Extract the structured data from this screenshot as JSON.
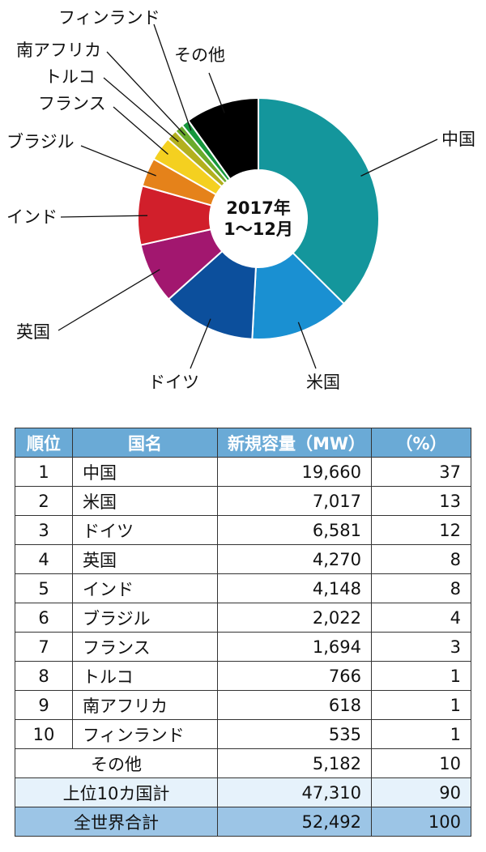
{
  "chart_data": [
    {
      "type": "pie",
      "donut": true,
      "center_label": [
        "2017年",
        "1～12月"
      ],
      "categories": [
        "中国",
        "米国",
        "ドイツ",
        "英国",
        "インド",
        "ブラジル",
        "フランス",
        "トルコ",
        "南アフリカ",
        "フィンランド",
        "その他"
      ],
      "values": [
        19660,
        7017,
        6581,
        4270,
        4148,
        2022,
        1694,
        766,
        618,
        535,
        5182
      ],
      "colors": [
        "#14969c",
        "#1a90d2",
        "#0c4f9c",
        "#a2176f",
        "#d11f2b",
        "#e5821a",
        "#f4d020",
        "#b3b01e",
        "#6bab2c",
        "#16973c",
        "#000000"
      ],
      "start": "top",
      "direction": "clockwise"
    },
    {
      "type": "table",
      "headers": [
        "順位",
        "国名",
        "新規容量（MW）",
        "（%）"
      ],
      "rows": [
        [
          "1",
          "中国",
          "19,660",
          "37"
        ],
        [
          "2",
          "米国",
          "7,017",
          "13"
        ],
        [
          "3",
          "ドイツ",
          "6,581",
          "12"
        ],
        [
          "4",
          "英国",
          "4,270",
          "8"
        ],
        [
          "5",
          "インド",
          "4,148",
          "8"
        ],
        [
          "6",
          "ブラジル",
          "2,022",
          "4"
        ],
        [
          "7",
          "フランス",
          "1,694",
          "3"
        ],
        [
          "8",
          "トルコ",
          "766",
          "1"
        ],
        [
          "9",
          "南アフリカ",
          "618",
          "1"
        ],
        [
          "10",
          "フィンランド",
          "535",
          "1"
        ]
      ],
      "other": [
        "その他",
        "5,182",
        "10"
      ],
      "top10": [
        "上位10カ国計",
        "47,310",
        "90"
      ],
      "total": [
        "全世界合計",
        "52,492",
        "100"
      ],
      "header_color": "#6aaad6",
      "top10_color": "#e6f2fb",
      "total_color": "#9cc5e6"
    }
  ]
}
